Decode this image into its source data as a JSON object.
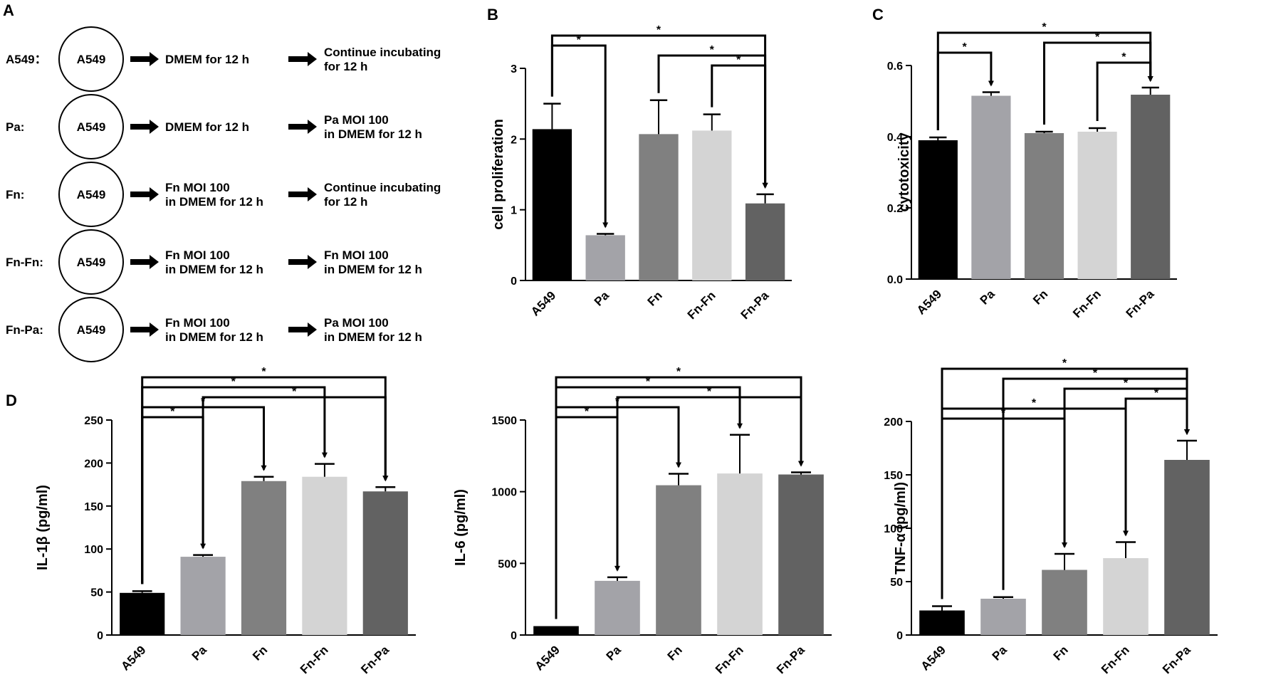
{
  "panel_labels": {
    "a": "A",
    "b": "B",
    "c": "C",
    "d": "D"
  },
  "workflow": {
    "rows": [
      {
        "label": "A549：",
        "cell": "A549",
        "step1": [
          "DMEM for 12 h"
        ],
        "step2": [
          "Continue incubating",
          "for 12 h"
        ]
      },
      {
        "label": "Pa:",
        "cell": "A549",
        "step1": [
          "DMEM for 12 h"
        ],
        "step2": [
          "Pa MOI 100",
          "in DMEM for 12 h"
        ]
      },
      {
        "label": "Fn:",
        "cell": "A549",
        "step1": [
          "Fn MOI 100",
          "in DMEM for 12 h"
        ],
        "step2": [
          "Continue incubating",
          "for 12 h"
        ]
      },
      {
        "label": "Fn-Fn:",
        "cell": "A549",
        "step1": [
          "Fn MOI 100",
          "in DMEM for 12 h"
        ],
        "step2": [
          "Fn MOI 100",
          "in DMEM for 12 h"
        ]
      },
      {
        "label": "Fn-Pa:",
        "cell": "A549",
        "step1": [
          "Fn MOI 100",
          "in DMEM for 12 h"
        ],
        "step2": [
          "Pa MOI 100",
          "in DMEM for 12 h"
        ]
      }
    ]
  },
  "bar_colors": [
    "#000000",
    "#a3a3a8",
    "#808080",
    "#d4d4d4",
    "#626262"
  ],
  "chart_data": [
    {
      "id": "cell-proliferation",
      "type": "bar",
      "categories": [
        "A549",
        "Pa",
        "Fn",
        "Fn-Fn",
        "Fn-Pa"
      ],
      "values": [
        2.14,
        0.64,
        2.07,
        2.12,
        1.09
      ],
      "errors": [
        0.36,
        0.02,
        0.48,
        0.23,
        0.13
      ],
      "ylabel": "cell proliferation",
      "ylim": [
        0,
        3
      ],
      "yticks": [
        0,
        1,
        2,
        3
      ],
      "ytick_labels": [
        "0",
        "1",
        "2",
        "3"
      ],
      "significance": [
        {
          "a": 0,
          "b": 4,
          "label": "*"
        },
        {
          "a": 0,
          "b": 1,
          "label": "*"
        },
        {
          "a": 2,
          "b": 4,
          "label": "*"
        },
        {
          "a": 3,
          "b": 4,
          "label": "*"
        }
      ]
    },
    {
      "id": "cytotoxicity",
      "type": "bar",
      "categories": [
        "A549",
        "Pa",
        "Fn",
        "Fn-Fn",
        "Fn-Pa"
      ],
      "values": [
        0.39,
        0.515,
        0.41,
        0.414,
        0.518
      ],
      "errors": [
        0.008,
        0.01,
        0.004,
        0.01,
        0.02
      ],
      "ylabel": "cytotoxicity",
      "ylim": [
        0,
        0.6
      ],
      "yticks": [
        0,
        0.2,
        0.4,
        0.6
      ],
      "ytick_labels": [
        "0.0",
        "0.2",
        "0.4",
        "0.6"
      ],
      "significance": [
        {
          "a": 0,
          "b": 4,
          "label": "*"
        },
        {
          "a": 2,
          "b": 4,
          "label": "*"
        },
        {
          "a": 0,
          "b": 1,
          "label": "*"
        },
        {
          "a": 3,
          "b": 4,
          "label": "*"
        }
      ]
    },
    {
      "id": "il1b",
      "type": "bar",
      "categories": [
        "A549",
        "Pa",
        "Fn",
        "Fn-Fn",
        "Fn-Pa"
      ],
      "values": [
        49,
        91,
        179,
        184,
        167
      ],
      "errors": [
        2,
        2,
        5,
        15,
        5
      ],
      "ylabel": "IL-1β (pg/ml)",
      "ylim": [
        0,
        250
      ],
      "yticks": [
        0,
        50,
        100,
        150,
        200,
        250
      ],
      "ytick_labels": [
        "0",
        "50",
        "100",
        "150",
        "200",
        "250"
      ],
      "significance": [
        {
          "a": 0,
          "b": 4,
          "label": "*"
        },
        {
          "a": 0,
          "b": 3,
          "label": "*"
        },
        {
          "a": 1,
          "b": 4,
          "label": "*"
        },
        {
          "a": 0,
          "b": 2,
          "label": "*"
        },
        {
          "a": 0,
          "b": 1,
          "label": "*"
        }
      ]
    },
    {
      "id": "il6",
      "type": "bar",
      "categories": [
        "A549",
        "Pa",
        "Fn",
        "Fn-Fn",
        "Fn-Pa"
      ],
      "values": [
        62,
        378,
        1045,
        1127,
        1120
      ],
      "errors": [
        0,
        25,
        80,
        270,
        15
      ],
      "ylabel": "IL-6 (pg/ml)",
      "ylim": [
        0,
        1500
      ],
      "yticks": [
        0,
        500,
        1000,
        1500
      ],
      "ytick_labels": [
        "0",
        "500",
        "1000",
        "1500"
      ],
      "significance": [
        {
          "a": 0,
          "b": 4,
          "label": "*"
        },
        {
          "a": 0,
          "b": 3,
          "label": "*"
        },
        {
          "a": 1,
          "b": 4,
          "label": "*"
        },
        {
          "a": 0,
          "b": 2,
          "label": "*"
        },
        {
          "a": 0,
          "b": 1,
          "label": "*"
        }
      ]
    },
    {
      "id": "tnfa",
      "type": "bar",
      "categories": [
        "A549",
        "Pa",
        "Fn",
        "Fn-Fn",
        "Fn-Pa"
      ],
      "values": [
        23,
        34,
        61,
        72,
        164
      ],
      "errors": [
        4,
        1.5,
        15,
        15,
        18
      ],
      "ylabel": "TNF-α (pg/ml)",
      "ylim": [
        0,
        200
      ],
      "yticks": [
        0,
        50,
        100,
        150,
        200
      ],
      "ytick_labels": [
        "0",
        "50",
        "100",
        "150",
        "200"
      ],
      "significance": [
        {
          "a": 0,
          "b": 4,
          "label": "*"
        },
        {
          "a": 1,
          "b": 4,
          "label": "*"
        },
        {
          "a": 2,
          "b": 4,
          "label": "*"
        },
        {
          "a": 3,
          "b": 4,
          "label": "*"
        },
        {
          "a": 0,
          "b": 3,
          "label": "*"
        },
        {
          "a": 0,
          "b": 2,
          "label": "*"
        }
      ]
    }
  ]
}
